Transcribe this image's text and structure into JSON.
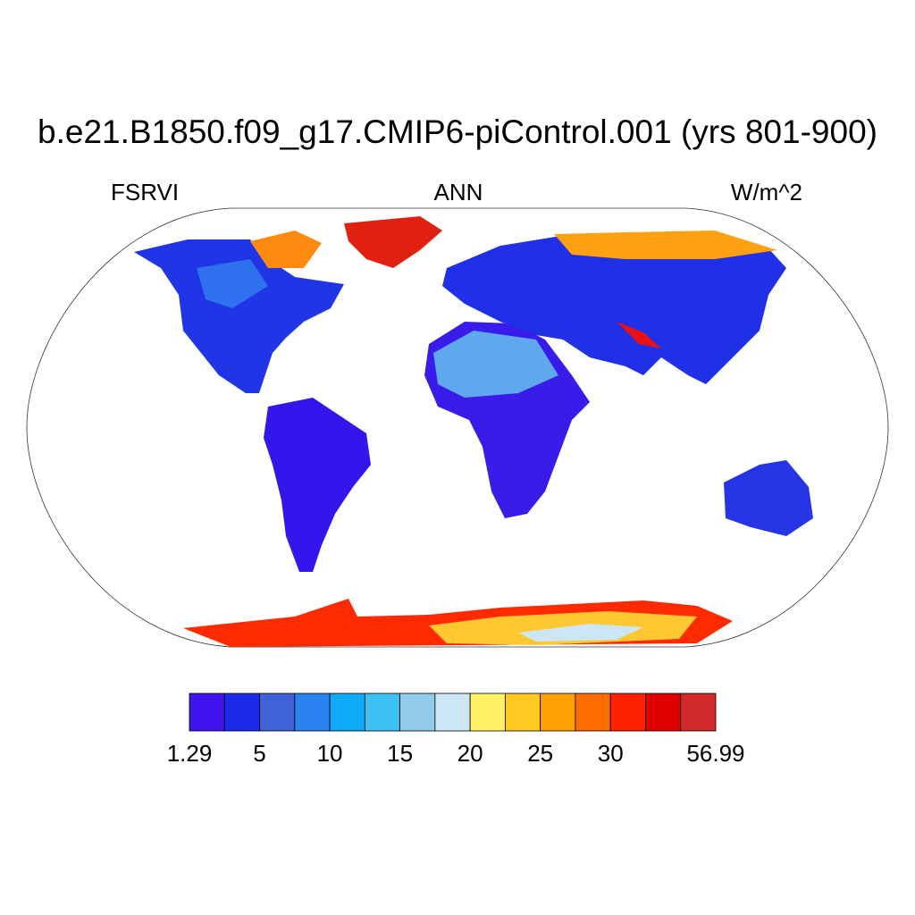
{
  "header": {
    "title": "b.e21.B1850.f09_g17.CMIP6-piControl.001 (yrs 801-900)",
    "left": "FSRVI",
    "center": "ANN",
    "right": "W/m^2"
  },
  "colorbar": {
    "colors": [
      "#4012f0",
      "#1a2ae8",
      "#4062d8",
      "#2a82f0",
      "#0eaaf8",
      "#3cc2f2",
      "#92cbea",
      "#cce6f5",
      "#fff064",
      "#ffc822",
      "#ffa000",
      "#ff6c00",
      "#ff2200",
      "#e00000",
      "#d02a2a"
    ],
    "labels": [
      1.29,
      5,
      10,
      15,
      20,
      25,
      30,
      56.99
    ]
  }
}
